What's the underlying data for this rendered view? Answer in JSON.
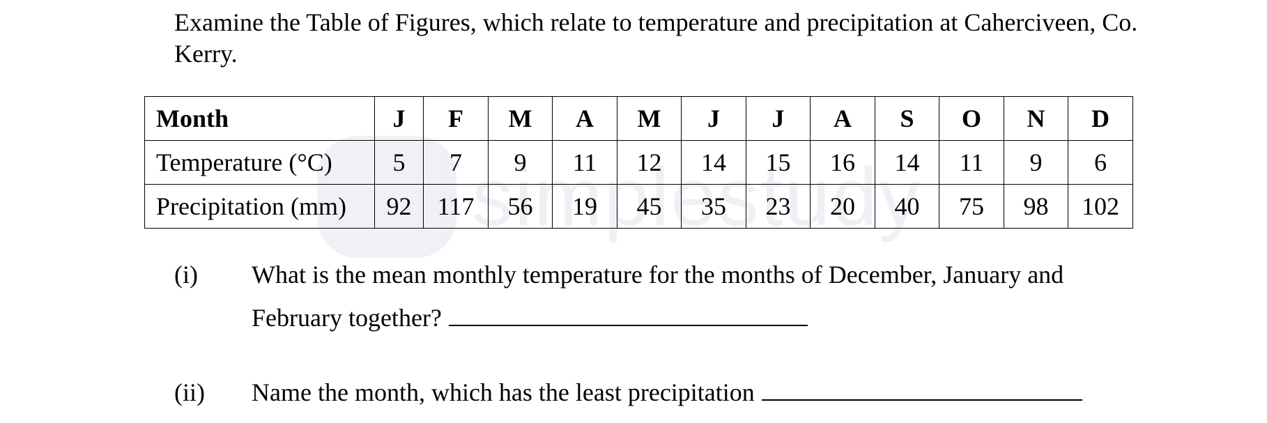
{
  "intro_text": "Examine the Table of Figures, which relate to temperature and precipitation at Caherciveen, Co. Kerry.",
  "watermark": "simplestudy",
  "table": {
    "header_label": "Month",
    "months": [
      "J",
      "F",
      "M",
      "A",
      "M",
      "J",
      "J",
      "A",
      "S",
      "O",
      "N",
      "D"
    ],
    "rows": [
      {
        "label": "Temperature (°C)",
        "values": [
          "5",
          "7",
          "9",
          "11",
          "12",
          "14",
          "15",
          "16",
          "14",
          "11",
          "9",
          "6"
        ]
      },
      {
        "label": "Precipitation (mm)",
        "values": [
          "92",
          "117",
          "56",
          "19",
          "45",
          "35",
          "23",
          "20",
          "40",
          "75",
          "98",
          "102"
        ]
      }
    ]
  },
  "questions": [
    {
      "number": "(i)",
      "line1": "What is the mean monthly temperature for the months of December, January and",
      "line2": "February together?"
    },
    {
      "number": "(ii)",
      "line1": "Name the month, which has the least precipitation"
    }
  ]
}
